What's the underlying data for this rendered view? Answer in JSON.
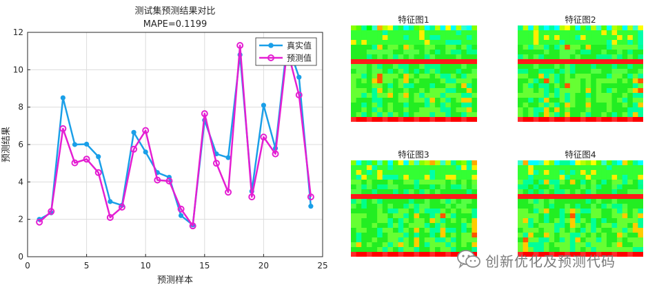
{
  "chart_data": {
    "type": "line",
    "title": "测试集预测结果对比",
    "subtitle": "MAPE=0.1199",
    "xlabel": "预测样本",
    "ylabel": "预测结果",
    "xlim": [
      0,
      25
    ],
    "ylim": [
      0,
      12
    ],
    "xticks": [
      0,
      5,
      10,
      15,
      20,
      25
    ],
    "yticks": [
      0,
      2,
      4,
      6,
      8,
      10,
      12
    ],
    "grid": true,
    "legend_position": "top-right",
    "x": [
      1,
      2,
      3,
      4,
      5,
      6,
      7,
      8,
      9,
      10,
      11,
      12,
      13,
      14,
      15,
      16,
      17,
      18,
      19,
      20,
      21,
      22,
      23,
      24
    ],
    "series": [
      {
        "name": "真实值",
        "color": "#1a9fe8",
        "marker": "filled-circle",
        "values": [
          2.0,
          2.35,
          8.5,
          6.0,
          6.02,
          5.35,
          2.95,
          2.75,
          6.65,
          5.6,
          4.5,
          4.25,
          2.2,
          1.7,
          7.3,
          5.5,
          5.3,
          10.8,
          3.5,
          8.1,
          5.8,
          11.45,
          9.6,
          2.7
        ]
      },
      {
        "name": "预测值",
        "color": "#e41ed2",
        "marker": "open-circle",
        "values": [
          1.85,
          2.42,
          6.85,
          5.02,
          5.22,
          4.5,
          2.1,
          2.65,
          5.75,
          6.75,
          4.1,
          4.05,
          2.55,
          1.65,
          7.65,
          5.0,
          3.45,
          11.3,
          3.2,
          6.4,
          5.5,
          11.1,
          8.65,
          3.2
        ]
      }
    ]
  },
  "feature_maps": [
    {
      "title": "特征图1",
      "seed": 11,
      "rows": 20,
      "cols": 24
    },
    {
      "title": "特征图2",
      "seed": 23,
      "rows": 20,
      "cols": 24
    },
    {
      "title": "特征图3",
      "seed": 37,
      "rows": 20,
      "cols": 24
    },
    {
      "title": "特征图4",
      "seed": 51,
      "rows": 20,
      "cols": 24
    }
  ],
  "watermark": {
    "text": "创新优化及预测代码",
    "icon": "wechat-icon"
  }
}
